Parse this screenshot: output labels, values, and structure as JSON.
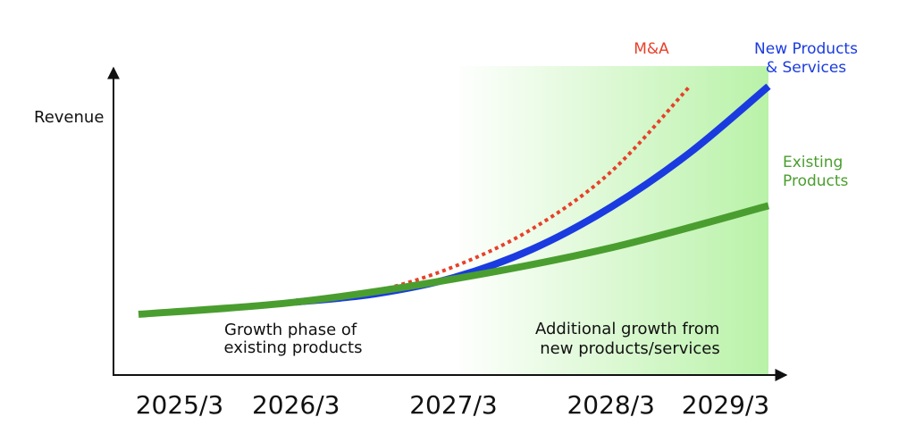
{
  "chart_data": {
    "type": "line",
    "title": "",
    "xlabel": "",
    "ylabel": "Revenue",
    "x_ticks": [
      "2025/3",
      "2026/3",
      "2027/3",
      "2028/3",
      "2029/3"
    ],
    "grid": false,
    "shaded_region": {
      "from": "2027/3",
      "to": "2029/3",
      "color": "#b9f2a8"
    },
    "annotations": {
      "growth_existing": [
        "Growth phase of",
        "existing products"
      ],
      "additional_growth": [
        "Additional growth from",
        "new products/services"
      ]
    },
    "series": [
      {
        "name": "Existing Products",
        "label_lines": [
          "Existing",
          "Products"
        ],
        "color": "#4a9e2f",
        "style": "solid",
        "x": [
          "2025/3",
          "2026/3",
          "2027/3",
          "2028/3",
          "2029/3"
        ],
        "values": [
          10,
          19,
          36,
          59,
          90
        ]
      },
      {
        "name": "New Products & Services",
        "label_lines": [
          "New Products",
          "& Services"
        ],
        "color": "#1a3be0",
        "style": "solid",
        "x": [
          "2026/3",
          "2026/9",
          "2027/3",
          "2027/9",
          "2028/3",
          "2028/9",
          "2029/3"
        ],
        "values": [
          19,
          25,
          37,
          58,
          89,
          129,
          178
        ]
      },
      {
        "name": "M&A",
        "label_lines": [
          "M&A"
        ],
        "color": "#e8402a",
        "style": "dotted",
        "x": [
          "2026/3",
          "2026/9",
          "2027/3",
          "2027/9",
          "2028/3",
          "2028/9"
        ],
        "values": [
          19,
          27,
          45,
          73,
          115,
          178
        ]
      }
    ]
  }
}
